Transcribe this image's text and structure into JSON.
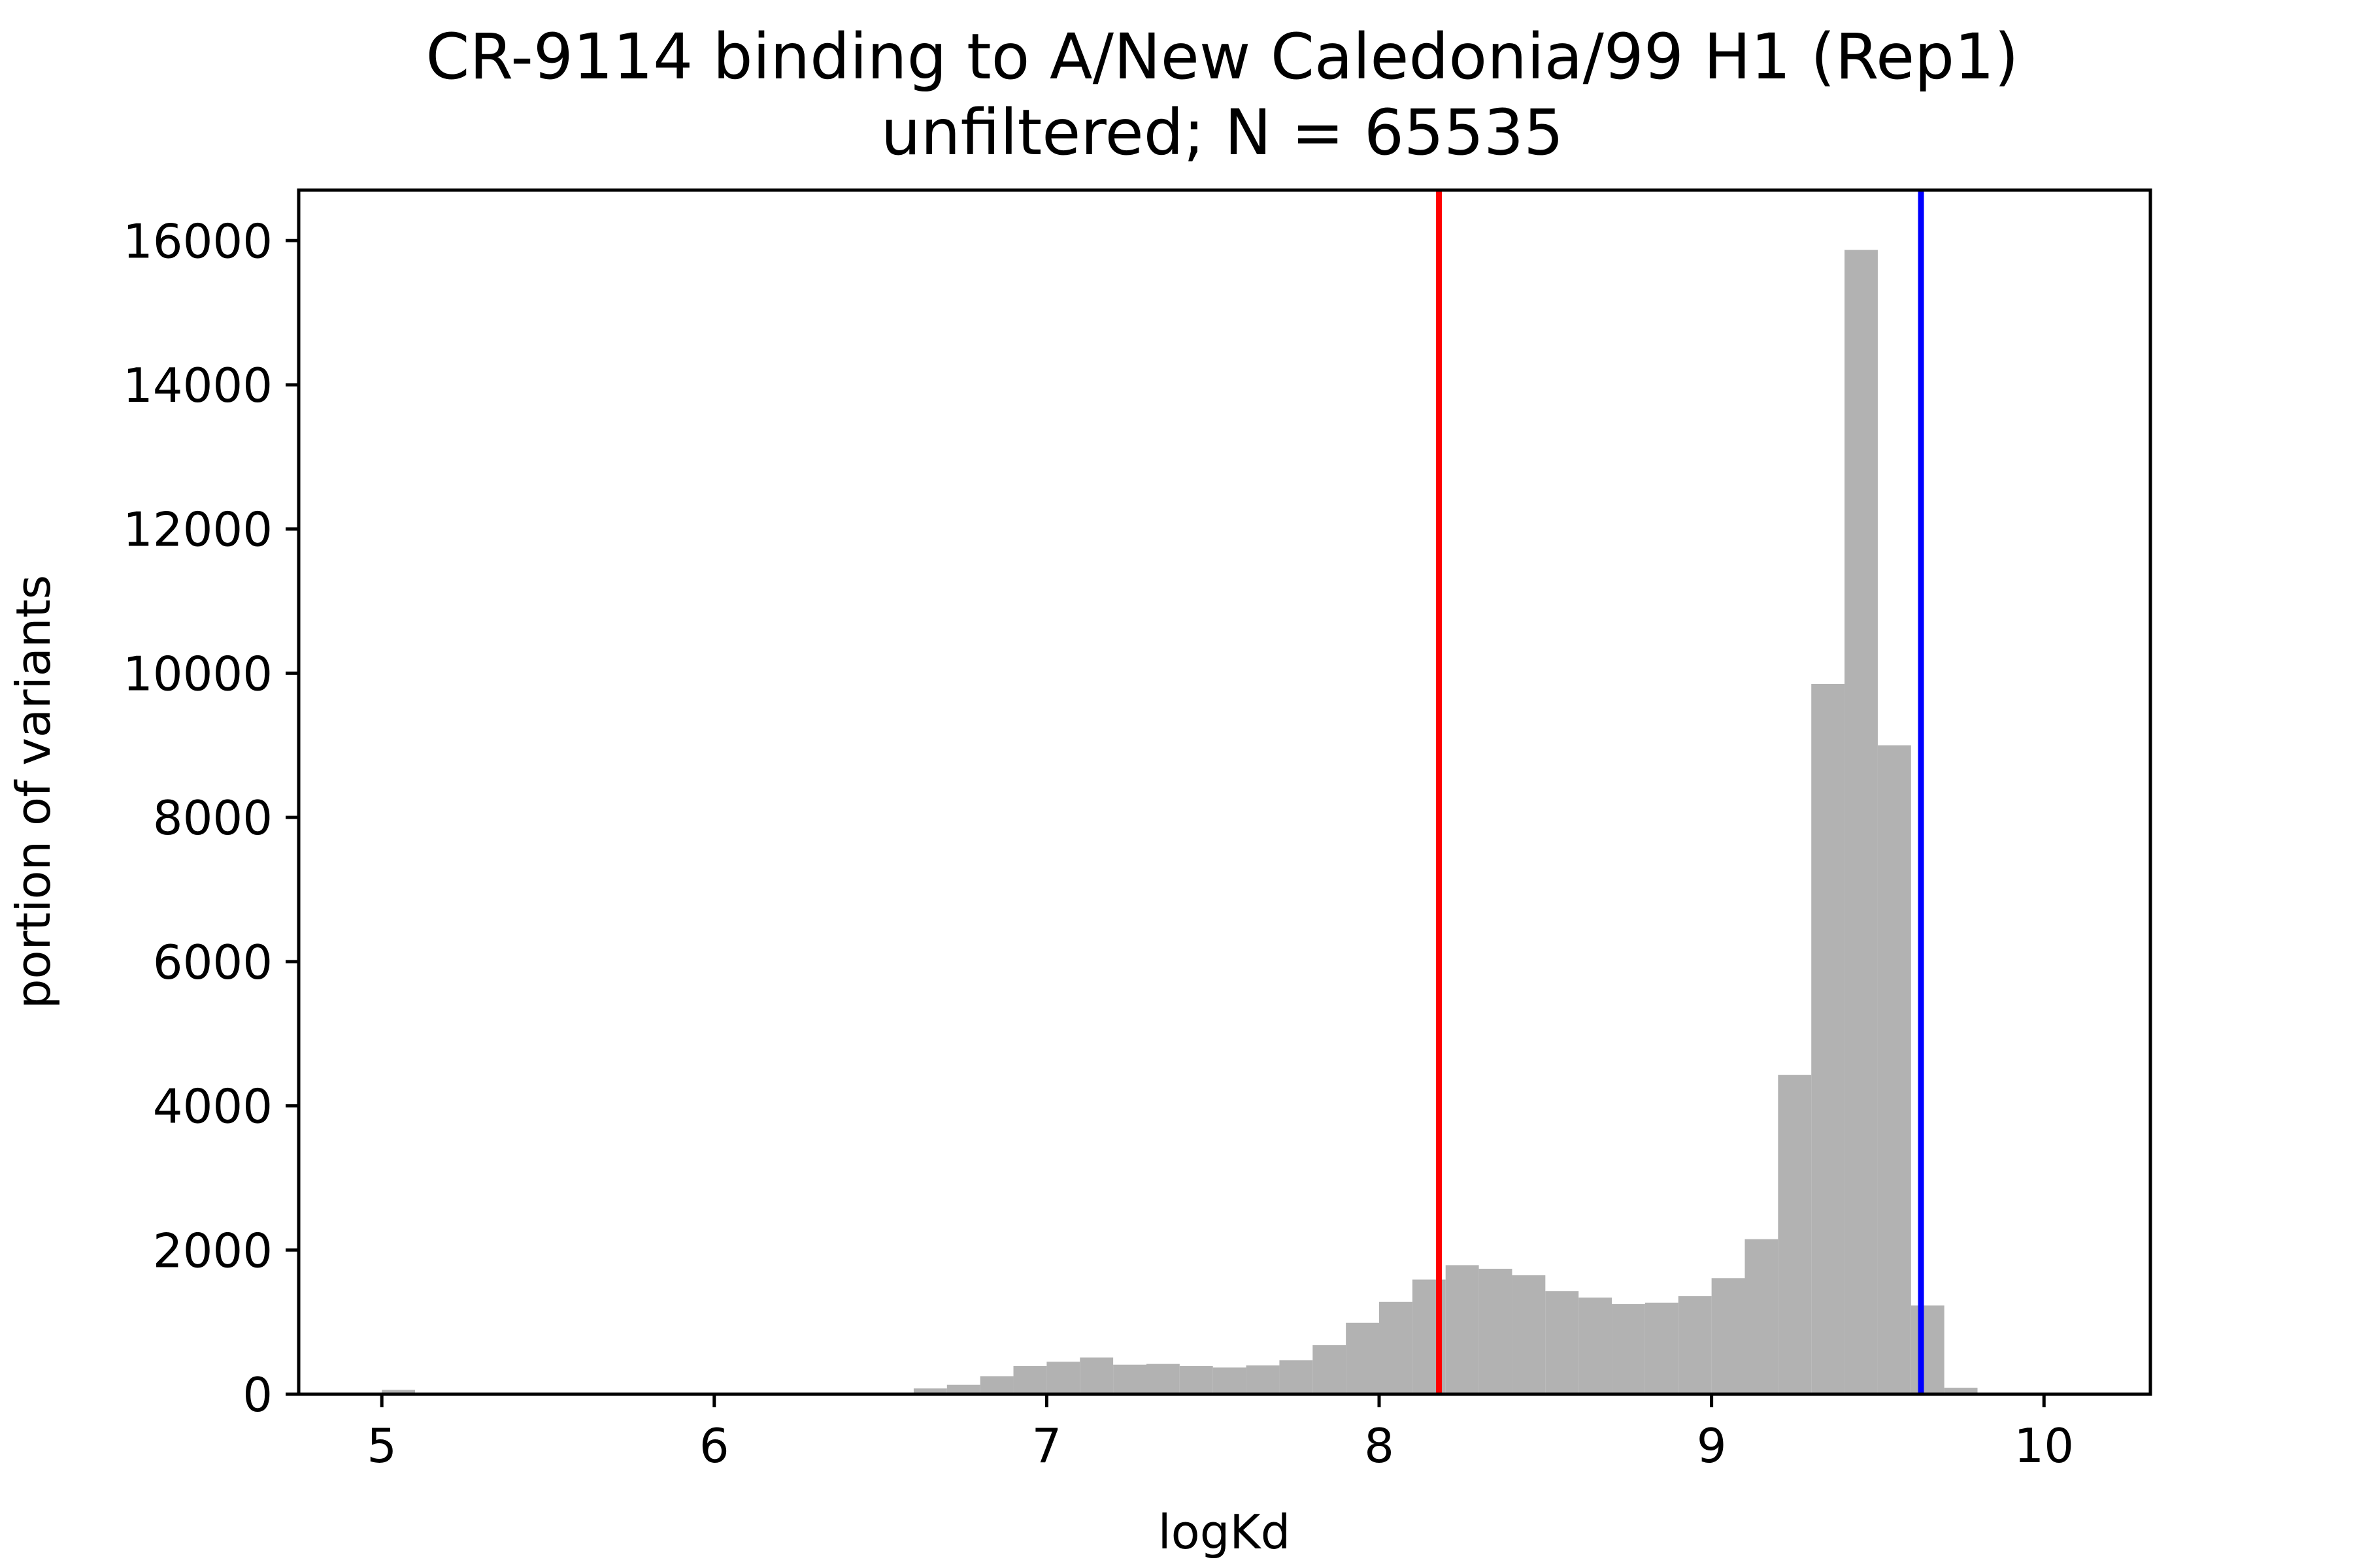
{
  "chart_data": {
    "type": "bar",
    "title": [
      "CR-9114 binding to A/New Caledonia/99 H1 (Rep1)",
      "unfiltered; N = 65535"
    ],
    "xlabel": "logKd",
    "ylabel": "portion of variants",
    "xlim": [
      4.75,
      10.32
    ],
    "ylim": [
      0,
      16700
    ],
    "xticks": [
      "5",
      "6",
      "7",
      "8",
      "9",
      "10"
    ],
    "yticks": [
      "0",
      "2000",
      "4000",
      "6000",
      "8000",
      "10000",
      "12000",
      "14000",
      "16000"
    ],
    "bin_width": 0.1,
    "bins": [
      {
        "x": 5.0,
        "count": 60
      },
      {
        "x": 6.5,
        "count": 20
      },
      {
        "x": 6.6,
        "count": 80
      },
      {
        "x": 6.7,
        "count": 130
      },
      {
        "x": 6.8,
        "count": 250
      },
      {
        "x": 6.9,
        "count": 390
      },
      {
        "x": 7.0,
        "count": 450
      },
      {
        "x": 7.1,
        "count": 510
      },
      {
        "x": 7.2,
        "count": 410
      },
      {
        "x": 7.3,
        "count": 420
      },
      {
        "x": 7.4,
        "count": 390
      },
      {
        "x": 7.5,
        "count": 370
      },
      {
        "x": 7.6,
        "count": 400
      },
      {
        "x": 7.7,
        "count": 470
      },
      {
        "x": 7.8,
        "count": 680
      },
      {
        "x": 7.9,
        "count": 990
      },
      {
        "x": 8.0,
        "count": 1280
      },
      {
        "x": 8.1,
        "count": 1590
      },
      {
        "x": 8.2,
        "count": 1790
      },
      {
        "x": 8.3,
        "count": 1740
      },
      {
        "x": 8.4,
        "count": 1650
      },
      {
        "x": 8.5,
        "count": 1430
      },
      {
        "x": 8.6,
        "count": 1340
      },
      {
        "x": 8.7,
        "count": 1250
      },
      {
        "x": 8.8,
        "count": 1270
      },
      {
        "x": 8.9,
        "count": 1360
      },
      {
        "x": 9.0,
        "count": 1610
      },
      {
        "x": 9.1,
        "count": 2150
      },
      {
        "x": 9.2,
        "count": 4430
      },
      {
        "x": 9.3,
        "count": 9850
      },
      {
        "x": 9.4,
        "count": 15870
      },
      {
        "x": 9.5,
        "count": 9000
      },
      {
        "x": 9.6,
        "count": 1230
      },
      {
        "x": 9.7,
        "count": 90
      }
    ],
    "vlines": [
      {
        "x": 8.18,
        "color": "#ff0000"
      },
      {
        "x": 9.63,
        "color": "#0000ff"
      }
    ],
    "bar_color": "#b2b2b2",
    "grid": false,
    "legend": "none"
  }
}
